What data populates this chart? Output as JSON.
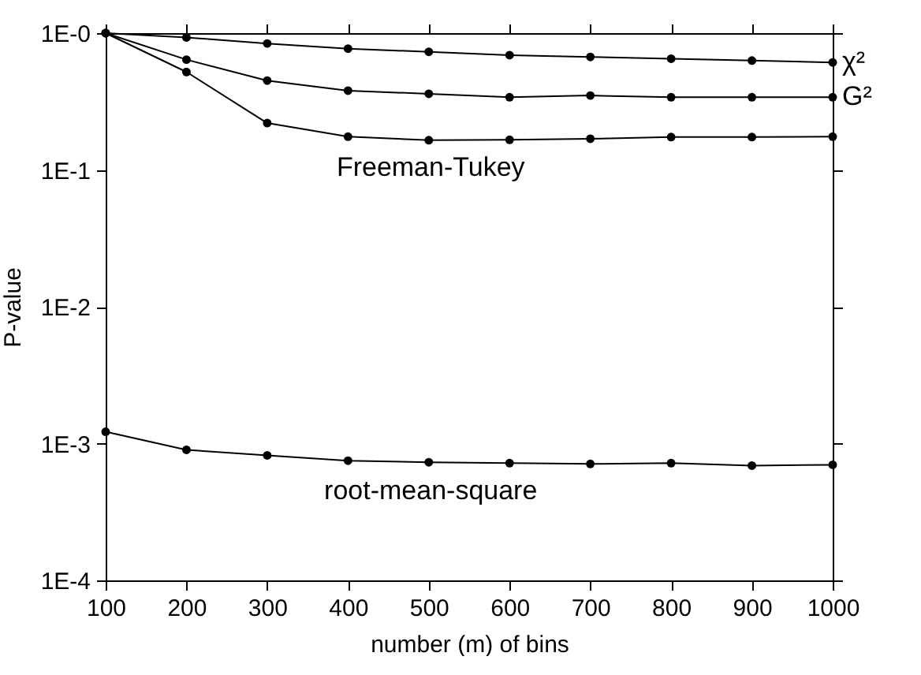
{
  "chart_data": {
    "type": "line",
    "xlabel": "number (m) of bins",
    "ylabel": "P-value",
    "x": [
      100,
      200,
      300,
      400,
      500,
      600,
      700,
      800,
      900,
      1000
    ],
    "series": [
      {
        "name": "χ²",
        "color": "#000000",
        "values": [
          1,
          0.93,
          0.84,
          0.77,
          0.73,
          0.69,
          0.67,
          0.65,
          0.63,
          0.61
        ]
      },
      {
        "name": "G²",
        "color": "#000000",
        "values": [
          1,
          0.64,
          0.45,
          0.38,
          0.36,
          0.34,
          0.35,
          0.34,
          0.34,
          0.34
        ]
      },
      {
        "name": "Freeman-Tukey",
        "color": "#000000",
        "values": [
          1,
          0.52,
          0.22,
          0.175,
          0.165,
          0.166,
          0.169,
          0.174,
          0.174,
          0.175
        ]
      },
      {
        "name": "root-mean-square",
        "color": "#000000",
        "values": [
          0.00122,
          0.0009,
          0.00082,
          0.00075,
          0.00073,
          0.00072,
          0.00071,
          0.00072,
          0.00069,
          0.0007
        ]
      }
    ],
    "log": "y",
    "xlim": [
      100,
      1000
    ],
    "xticks": [
      100,
      200,
      300,
      400,
      500,
      600,
      700,
      800,
      900,
      1000
    ],
    "ylim": [
      0.0001,
      1
    ],
    "yticks": [
      {
        "value": 0.0001,
        "label": "1E-4"
      },
      {
        "value": 0.001,
        "label": "1E-3"
      },
      {
        "value": 0.01,
        "label": "1E-2"
      },
      {
        "value": 0.1,
        "label": "1E-1"
      },
      {
        "value": 1,
        "label": "1E-0"
      }
    ],
    "grid": false,
    "marker": "circle",
    "line_style": "solid"
  }
}
